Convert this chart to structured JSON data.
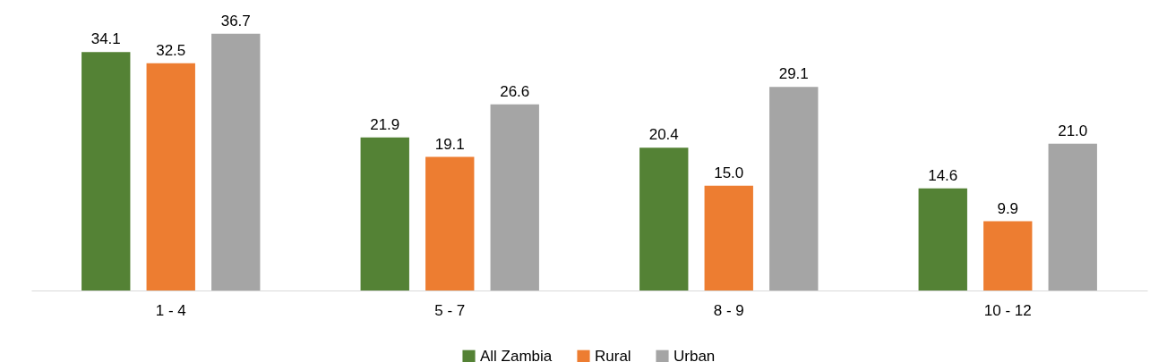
{
  "chart_data": {
    "type": "bar",
    "categories": [
      "1 - 4",
      "5 - 7",
      "8 - 9",
      "10 - 12"
    ],
    "series": [
      {
        "name": "All Zambia",
        "color": "#548235",
        "values": [
          34.1,
          21.9,
          20.4,
          14.6
        ],
        "value_labels": [
          "34.1",
          "21.9",
          "20.4",
          "14.6"
        ]
      },
      {
        "name": "Rural",
        "color": "#ed7d31",
        "values": [
          32.5,
          19.1,
          15.0,
          9.9
        ],
        "value_labels": [
          "32.5",
          "19.1",
          "15.0",
          "9.9"
        ]
      },
      {
        "name": "Urban",
        "color": "#a5a5a5",
        "values": [
          36.7,
          26.6,
          29.1,
          21.0
        ],
        "value_labels": [
          "36.7",
          "26.6",
          "29.1",
          "21.0"
        ]
      }
    ],
    "legend": "bottom"
  }
}
